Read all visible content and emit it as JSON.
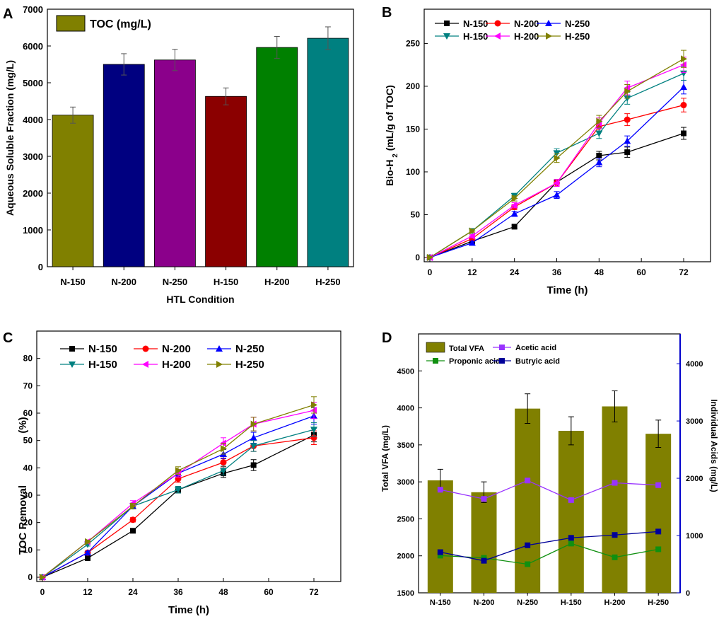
{
  "colors": {
    "A_bars": [
      "#808000",
      "#000080",
      "#8b008b",
      "#8b0000",
      "#008000",
      "#008080"
    ],
    "N150": "#000000",
    "N200": "#ff0000",
    "N250": "#0000ff",
    "H150": "#008080",
    "H200": "#ff00ff",
    "H250": "#808000",
    "olive": "#808000",
    "acetic": "#9933ff",
    "propionic": "#109010",
    "butyric": "#000099",
    "right_axis": "#0000cc"
  },
  "chart_data": [
    {
      "panel": "A",
      "type": "bar",
      "categories": [
        "N-150",
        "N-200",
        "N-250",
        "H-150",
        "H-200",
        "H-250"
      ],
      "values": [
        4120,
        5500,
        5620,
        4630,
        5960,
        6210
      ],
      "errors": [
        220,
        290,
        290,
        230,
        300,
        310
      ],
      "legend": "TOC (mg/L)",
      "xlabel": "HTL Condition",
      "ylabel": "Aqueous Soluble Fraction (mg/L)",
      "ylim": [
        0,
        7000
      ],
      "yticks": [
        "0",
        "1000",
        "2000",
        "3000",
        "4000",
        "5000",
        "6000",
        "7000"
      ]
    },
    {
      "panel": "B",
      "type": "line",
      "x": [
        0,
        12,
        24,
        36,
        48,
        56,
        72
      ],
      "xticks": [
        "0",
        "12",
        "24",
        "36",
        "48",
        "60",
        "72"
      ],
      "yticks": [
        "0",
        "50",
        "100",
        "150",
        "200",
        "250"
      ],
      "xlim": [
        0,
        72
      ],
      "ylim": [
        0,
        290
      ],
      "xlabel": "Time (h)",
      "ylabel_main": "Bio-H",
      "ylabel_sub": "2",
      "ylabel_rest": "(mL/g of TOC)",
      "series": [
        {
          "name": "N-150",
          "values": [
            0,
            19,
            36,
            88,
            119,
            123,
            145
          ],
          "errors": [
            0,
            2,
            2,
            3,
            5,
            6,
            7
          ]
        },
        {
          "name": "N-200",
          "values": [
            0,
            22,
            59,
            87,
            153,
            161,
            178
          ],
          "errors": [
            0,
            2,
            3,
            4,
            6,
            7,
            8
          ]
        },
        {
          "name": "N-250",
          "values": [
            0,
            17,
            51,
            73,
            111,
            136,
            199
          ],
          "errors": [
            0,
            2,
            3,
            4,
            5,
            6,
            8
          ]
        },
        {
          "name": "H-150",
          "values": [
            0,
            31,
            72,
            122,
            145,
            186,
            215
          ],
          "errors": [
            0,
            2,
            3,
            5,
            6,
            7,
            8
          ]
        },
        {
          "name": "H-200",
          "values": [
            0,
            25,
            61,
            87,
            157,
            198,
            225
          ],
          "errors": [
            0,
            2,
            3,
            4,
            6,
            8,
            9
          ]
        },
        {
          "name": "H-250",
          "values": [
            0,
            31,
            69,
            116,
            159,
            194,
            232
          ],
          "errors": [
            0,
            2,
            3,
            5,
            7,
            8,
            10
          ]
        }
      ]
    },
    {
      "panel": "C",
      "type": "line",
      "x": [
        0,
        12,
        24,
        36,
        48,
        56,
        72
      ],
      "xticks": [
        "0",
        "12",
        "24",
        "36",
        "48",
        "60",
        "72"
      ],
      "yticks": [
        "0",
        "10",
        "20",
        "30",
        "40",
        "50",
        "60",
        "70",
        "80"
      ],
      "xlim": [
        0,
        72
      ],
      "ylim": [
        0,
        90
      ],
      "xlabel": "Time (h)",
      "ylabel_main": "TOC Removal",
      "ylabel_unit": "(%)",
      "series": [
        {
          "name": "N-150",
          "values": [
            0,
            7,
            17,
            32,
            38,
            41,
            52
          ],
          "errors": [
            0,
            0.5,
            0.8,
            1.2,
            1.5,
            2,
            2.5
          ]
        },
        {
          "name": "N-200",
          "values": [
            0,
            9,
            21,
            36,
            42,
            48,
            51
          ],
          "errors": [
            0,
            0.5,
            0.8,
            1.3,
            1.6,
            2,
            2.5
          ]
        },
        {
          "name": "N-250",
          "values": [
            0,
            9,
            26,
            38,
            45,
            51,
            59
          ],
          "errors": [
            0,
            0.5,
            1,
            1.3,
            1.7,
            2,
            3
          ]
        },
        {
          "name": "H-150",
          "values": [
            0,
            12,
            26,
            32,
            39,
            48,
            54
          ],
          "errors": [
            0,
            0.6,
            1,
            1.2,
            1.6,
            2,
            2.5
          ]
        },
        {
          "name": "H-200",
          "values": [
            0,
            13,
            27,
            38,
            49,
            56,
            61
          ],
          "errors": [
            0,
            0.6,
            1,
            1.4,
            2,
            2.5,
            3
          ]
        },
        {
          "name": "H-250",
          "values": [
            0,
            13,
            26,
            39,
            47,
            56,
            63
          ],
          "errors": [
            0,
            0.6,
            1,
            1.4,
            2,
            2.5,
            3
          ]
        }
      ]
    },
    {
      "panel": "D",
      "type": "bar",
      "categories": [
        "N-150",
        "N-200",
        "N-250",
        "H-150",
        "H-200",
        "H-250"
      ],
      "bar_series": {
        "name": "Total VFA",
        "values": [
          3020,
          2860,
          3990,
          3690,
          4020,
          3650
        ],
        "errors": [
          150,
          140,
          200,
          190,
          210,
          185
        ]
      },
      "line_series": [
        {
          "name": "Acetic acid",
          "values": [
            1800,
            1640,
            1960,
            1620,
            1920,
            1880
          ]
        },
        {
          "name": "Proponic acid",
          "values": [
            650,
            610,
            500,
            860,
            620,
            760
          ]
        },
        {
          "name": "Butryic acid",
          "values": [
            710,
            560,
            830,
            960,
            1010,
            1070
          ]
        }
      ],
      "ylabel": "Total VFA (mg/L)",
      "ylabel_right": "Individual Acids (mg/L)",
      "ylim": [
        1500,
        5000
      ],
      "ylim_right": [
        0,
        4520
      ],
      "yticks": [
        "1500",
        "2000",
        "2500",
        "3000",
        "3500",
        "4000",
        "4500"
      ],
      "yticks_right": [
        "0",
        "1000",
        "2000",
        "3000",
        "4000"
      ]
    }
  ],
  "panels": {
    "A": "A",
    "B": "B",
    "C": "C",
    "D": "D"
  }
}
